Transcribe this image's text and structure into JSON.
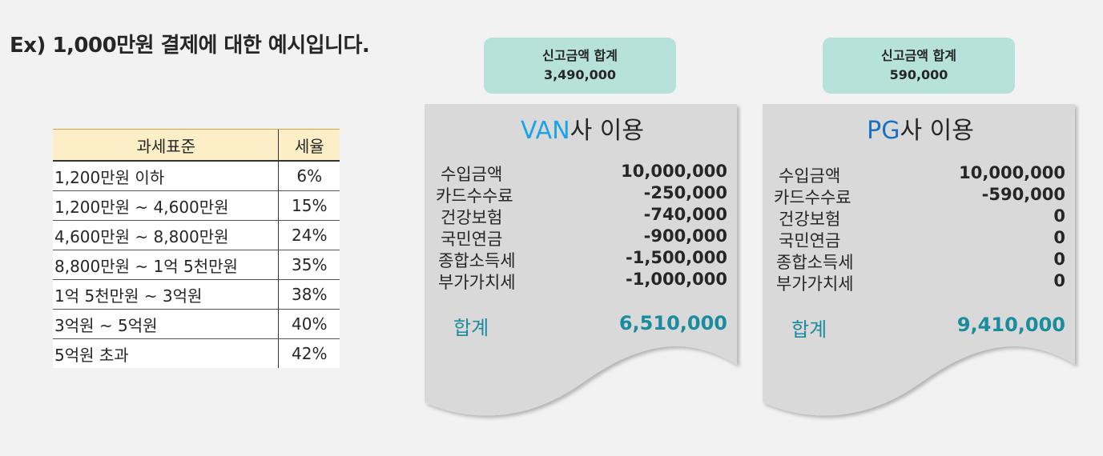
{
  "headline": "Ex) 1,000만원 결제에 대한 예시입니다.",
  "tax_table": {
    "headers": [
      "과세표준",
      "세율"
    ],
    "rows": [
      [
        "1,200만원 이하",
        "6%"
      ],
      [
        "1,200만원 ~ 4,600만원",
        "15%"
      ],
      [
        "4,600만원 ~ 8,800만원",
        "24%"
      ],
      [
        "8,800만원 ~ 1억 5천만원",
        "35%"
      ],
      [
        "1억 5천만원 ~ 3억원",
        "38%"
      ],
      [
        "3억원 ~ 5억원",
        "40%"
      ],
      [
        "5억원 초과",
        "42%"
      ]
    ]
  },
  "van": {
    "total_box": {
      "label": "신고금액 합계",
      "amount": "3,490,000"
    },
    "title_highlight": "VAN",
    "title_rest": "사 이용",
    "items": [
      {
        "label": "수입금액",
        "value": "10,000,000"
      },
      {
        "label": "카드수수료",
        "value": "-250,000"
      },
      {
        "label": "건강보험",
        "value": "-740,000"
      },
      {
        "label": "국민연금",
        "value": "-900,000"
      },
      {
        "label": "종합소득세",
        "value": "-1,500,000"
      },
      {
        "label": "부가가치세",
        "value": "-1,000,000"
      }
    ],
    "sum_label": "합계",
    "sum_value": "6,510,000"
  },
  "pg": {
    "total_box": {
      "label": "신고금액 합계",
      "amount": "590,000"
    },
    "title_highlight": "PG",
    "title_rest": "사 이용",
    "items": [
      {
        "label": "수입금액",
        "value": "10,000,000"
      },
      {
        "label": "카드수수료",
        "value": "-590,000"
      },
      {
        "label": "건강보험",
        "value": "0"
      },
      {
        "label": "국민연금",
        "value": "0"
      },
      {
        "label": "종합소득세",
        "value": "0"
      },
      {
        "label": "부가가치세",
        "value": "0"
      }
    ],
    "sum_label": "합계",
    "sum_value": "9,410,000"
  },
  "colors": {
    "total_box": "#b7e2d9",
    "receipt": "#d9d9d9",
    "van_accent": "#1aa3e8",
    "pg_accent": "#1a70c4",
    "sum_color": "#1a8c9e"
  }
}
